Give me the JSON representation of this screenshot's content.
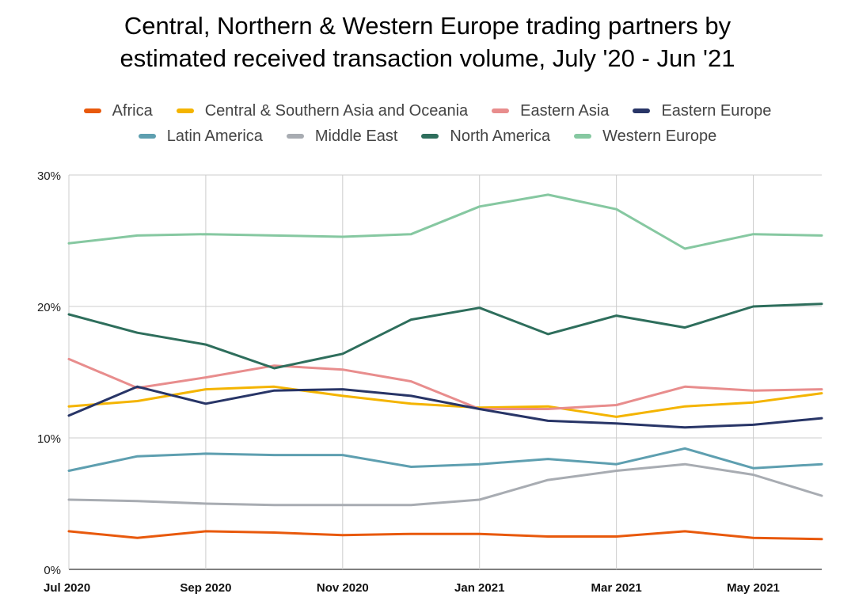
{
  "chart_data": {
    "type": "line",
    "title_line1": "Central, Northern & Western Europe trading partners by",
    "title_line2": "estimated received transaction volume, July '20 - Jun '21",
    "xlabel": "",
    "ylabel": "",
    "ylim": [
      0,
      30
    ],
    "y_ticks": [
      "0%",
      "10%",
      "20%",
      "30%"
    ],
    "x": [
      "Jul 2020",
      "Aug 2020",
      "Sep 2020",
      "Oct 2020",
      "Nov 2020",
      "Dec 2020",
      "Jan 2021",
      "Feb 2021",
      "Mar 2021",
      "Apr 2021",
      "May 2021",
      "Jun 2021"
    ],
    "x_tick_labels": [
      "Jul 2020",
      "",
      "Sep 2020",
      "",
      "Nov 2020",
      "",
      "Jan 2021",
      "",
      "Mar 2021",
      "",
      "May 2021",
      ""
    ],
    "grid": true,
    "legend_position": "top",
    "series": [
      {
        "name": "Africa",
        "color": "#e8590c",
        "values": [
          2.9,
          2.4,
          2.9,
          2.8,
          2.6,
          2.7,
          2.7,
          2.5,
          2.5,
          2.9,
          2.4,
          2.3
        ]
      },
      {
        "name": "Central & Southern Asia and Oceania",
        "color": "#f4b400",
        "values": [
          12.4,
          12.8,
          13.7,
          13.9,
          13.2,
          12.6,
          12.3,
          12.4,
          11.6,
          12.4,
          12.7,
          13.4
        ]
      },
      {
        "name": "Eastern Asia",
        "color": "#e88d8d",
        "values": [
          16.0,
          13.8,
          14.6,
          15.5,
          15.2,
          14.3,
          12.2,
          12.2,
          12.5,
          13.9,
          13.6,
          13.7
        ]
      },
      {
        "name": "Eastern Europe",
        "color": "#283567",
        "values": [
          11.7,
          13.9,
          12.6,
          13.6,
          13.7,
          13.2,
          12.2,
          11.3,
          11.1,
          10.8,
          11.0,
          11.5
        ]
      },
      {
        "name": "Latin America",
        "color": "#5e9fb0",
        "values": [
          7.5,
          8.6,
          8.8,
          8.7,
          8.7,
          7.8,
          8.0,
          8.4,
          8.0,
          9.2,
          7.7,
          8.0
        ]
      },
      {
        "name": "Middle East",
        "color": "#a8acb2",
        "values": [
          5.3,
          5.2,
          5.0,
          4.9,
          4.9,
          4.9,
          5.3,
          6.8,
          7.5,
          8.0,
          7.2,
          5.6
        ]
      },
      {
        "name": "North America",
        "color": "#2e6e5c",
        "values": [
          19.4,
          18.0,
          17.1,
          15.3,
          16.4,
          19.0,
          19.9,
          17.9,
          19.3,
          18.4,
          20.0,
          20.2
        ]
      },
      {
        "name": "Western Europe",
        "color": "#86c8a1",
        "values": [
          24.8,
          25.4,
          25.5,
          25.4,
          25.3,
          25.5,
          27.6,
          28.5,
          27.4,
          24.4,
          25.5,
          25.4
        ]
      }
    ]
  }
}
